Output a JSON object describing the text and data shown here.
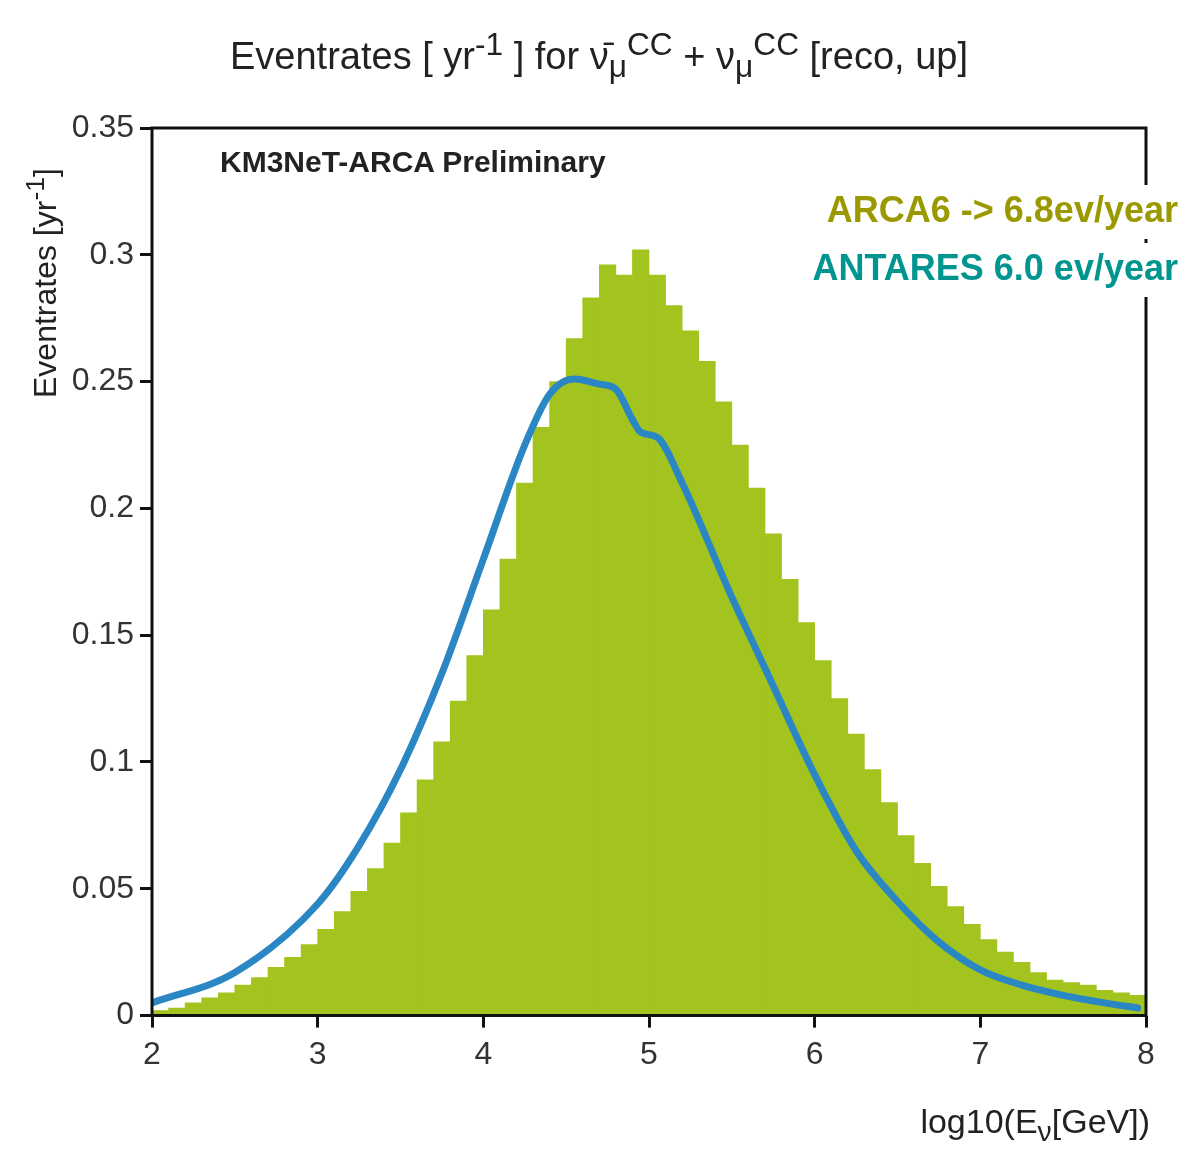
{
  "chart_data": {
    "type": "histogram",
    "title": "Eventrates [ yr$^{-1}$ ] for ν̄$_{μ}$$^{CC}$ + ν$_{μ}$$^{CC}$ [reco, up]",
    "xlabel": "log10(E$_{ν}$[GeV])",
    "ylabel": "Eventrates [yr$^{-1}$]",
    "annotations": [
      "KM3NeT-ARCA Preliminary",
      "ARCA6 -> 6.8ev/year",
      "ANTARES 6.0 ev/year"
    ],
    "bins": [
      2.0,
      2.1,
      2.2,
      2.3,
      2.4,
      2.5,
      2.6,
      2.7,
      2.8,
      2.9,
      3.0,
      3.1,
      3.2,
      3.3,
      3.4,
      3.5,
      3.6,
      3.7,
      3.8,
      3.9,
      4.0,
      4.1,
      4.2,
      4.3,
      4.4,
      4.5,
      4.6,
      4.7,
      4.8,
      4.9,
      5.0,
      5.1,
      5.2,
      5.3,
      5.4,
      5.5,
      5.6,
      5.7,
      5.8,
      5.9,
      6.0,
      6.1,
      6.2,
      6.3,
      6.4,
      6.5,
      6.6,
      6.7,
      6.8,
      6.9,
      7.0,
      7.1,
      7.2,
      7.3,
      7.4,
      7.5,
      7.6,
      7.7,
      7.8,
      7.9,
      8.0
    ],
    "series": [
      {
        "type": "histogram",
        "color": "#a3c41e",
        "values": [
          0.002,
          0.003,
          0.005,
          0.007,
          0.009,
          0.012,
          0.015,
          0.019,
          0.023,
          0.028,
          0.034,
          0.041,
          0.049,
          0.058,
          0.068,
          0.08,
          0.093,
          0.108,
          0.124,
          0.142,
          0.16,
          0.18,
          0.21,
          0.232,
          0.25,
          0.267,
          0.283,
          0.296,
          0.292,
          0.302,
          0.292,
          0.28,
          0.27,
          0.258,
          0.242,
          0.225,
          0.208,
          0.19,
          0.172,
          0.155,
          0.14,
          0.125,
          0.111,
          0.097,
          0.084,
          0.071,
          0.06,
          0.051,
          0.043,
          0.036,
          0.03,
          0.025,
          0.021,
          0.017,
          0.014,
          0.013,
          0.012,
          0.01,
          0.009,
          0.008
        ]
      },
      {
        "type": "line",
        "color": "#2b87c3",
        "x": [
          2.0,
          2.5,
          3.0,
          3.25,
          3.5,
          3.75,
          4.0,
          4.25,
          4.4,
          4.55,
          4.7,
          4.8,
          4.9,
          4.95,
          5.05,
          5.2,
          5.5,
          5.75,
          6.0,
          6.25,
          6.5,
          6.75,
          7.0,
          7.25,
          7.5,
          7.75,
          7.95
        ],
        "values": [
          0.005,
          0.017,
          0.044,
          0.067,
          0.097,
          0.135,
          0.18,
          0.225,
          0.245,
          0.251,
          0.249,
          0.247,
          0.235,
          0.23,
          0.228,
          0.21,
          0.165,
          0.13,
          0.095,
          0.065,
          0.045,
          0.029,
          0.018,
          0.012,
          0.008,
          0.005,
          0.003
        ]
      }
    ],
    "xlim": [
      2,
      8
    ],
    "xticks": [
      2,
      3,
      4,
      5,
      6,
      7,
      8
    ],
    "ylim": [
      0,
      0.35
    ],
    "yticks": [
      0,
      0.05,
      0.1,
      0.15,
      0.2,
      0.25,
      0.3,
      0.35
    ],
    "grid": false,
    "legend": false
  }
}
